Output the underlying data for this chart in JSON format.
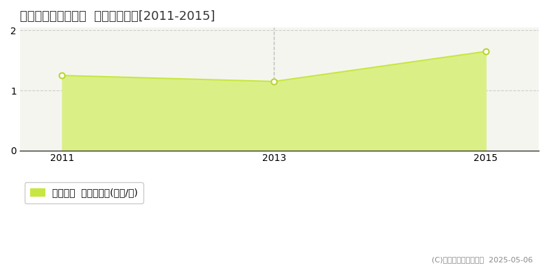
{
  "title": "瀬戸内市邑久町福谷  土地価格推移[2011-2015]",
  "years": [
    2011,
    2013,
    2015
  ],
  "values": [
    1.25,
    1.15,
    1.65
  ],
  "xlim": [
    2010.6,
    2015.5
  ],
  "ylim": [
    0,
    2.05
  ],
  "yticks": [
    0,
    1,
    2
  ],
  "xticks": [
    2011,
    2013,
    2015
  ],
  "line_color": "#c8e642",
  "fill_color": "#daf087",
  "marker_facecolor": "#ffffff",
  "marker_edgecolor": "#b8d430",
  "vline_x": 2013,
  "vline_color": "#bbbbbb",
  "grid_color": "#cccccc",
  "legend_label": "土地価格  平均坤単価(万円/坤)",
  "copyright_text": "(C)土地価格ドットコム  2025-05-06",
  "bg_color": "#ffffff",
  "plot_bg_color": "#f5f5f0",
  "title_fontsize": 13,
  "tick_fontsize": 10,
  "legend_fontsize": 10,
  "copyright_fontsize": 8
}
